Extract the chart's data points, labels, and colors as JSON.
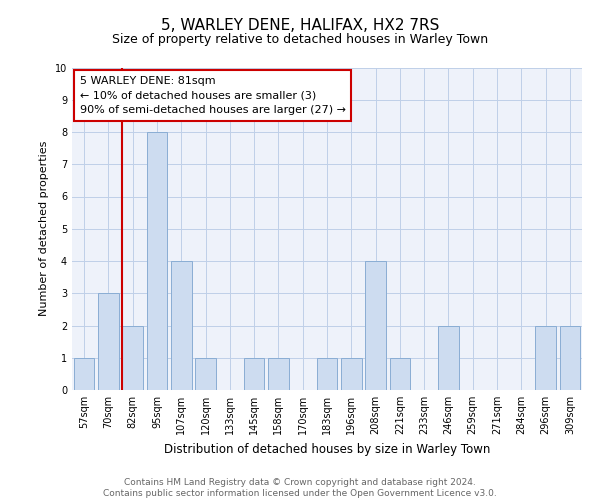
{
  "title": "5, WARLEY DENE, HALIFAX, HX2 7RS",
  "subtitle": "Size of property relative to detached houses in Warley Town",
  "xlabel": "Distribution of detached houses by size in Warley Town",
  "ylabel": "Number of detached properties",
  "categories": [
    "57sqm",
    "70sqm",
    "82sqm",
    "95sqm",
    "107sqm",
    "120sqm",
    "133sqm",
    "145sqm",
    "158sqm",
    "170sqm",
    "183sqm",
    "196sqm",
    "208sqm",
    "221sqm",
    "233sqm",
    "246sqm",
    "259sqm",
    "271sqm",
    "284sqm",
    "296sqm",
    "309sqm"
  ],
  "values": [
    1,
    3,
    2,
    8,
    4,
    1,
    0,
    1,
    1,
    0,
    1,
    1,
    4,
    1,
    0,
    2,
    0,
    0,
    0,
    2,
    2
  ],
  "bar_color": "#cddcf0",
  "bar_edge_color": "#8aadd4",
  "vline_pos": 1.575,
  "vline_color": "#cc0000",
  "annotation_box_text": "5 WARLEY DENE: 81sqm\n← 10% of detached houses are smaller (3)\n90% of semi-detached houses are larger (27) →",
  "annotation_box_color": "#cc0000",
  "ylim": [
    0,
    10
  ],
  "yticks": [
    0,
    1,
    2,
    3,
    4,
    5,
    6,
    7,
    8,
    9,
    10
  ],
  "grid_color": "#bfcfe8",
  "background_color": "#eef2fa",
  "footer_text": "Contains HM Land Registry data © Crown copyright and database right 2024.\nContains public sector information licensed under the Open Government Licence v3.0.",
  "title_fontsize": 11,
  "subtitle_fontsize": 9,
  "xlabel_fontsize": 8.5,
  "ylabel_fontsize": 8,
  "tick_fontsize": 7,
  "annotation_fontsize": 8,
  "footer_fontsize": 6.5
}
